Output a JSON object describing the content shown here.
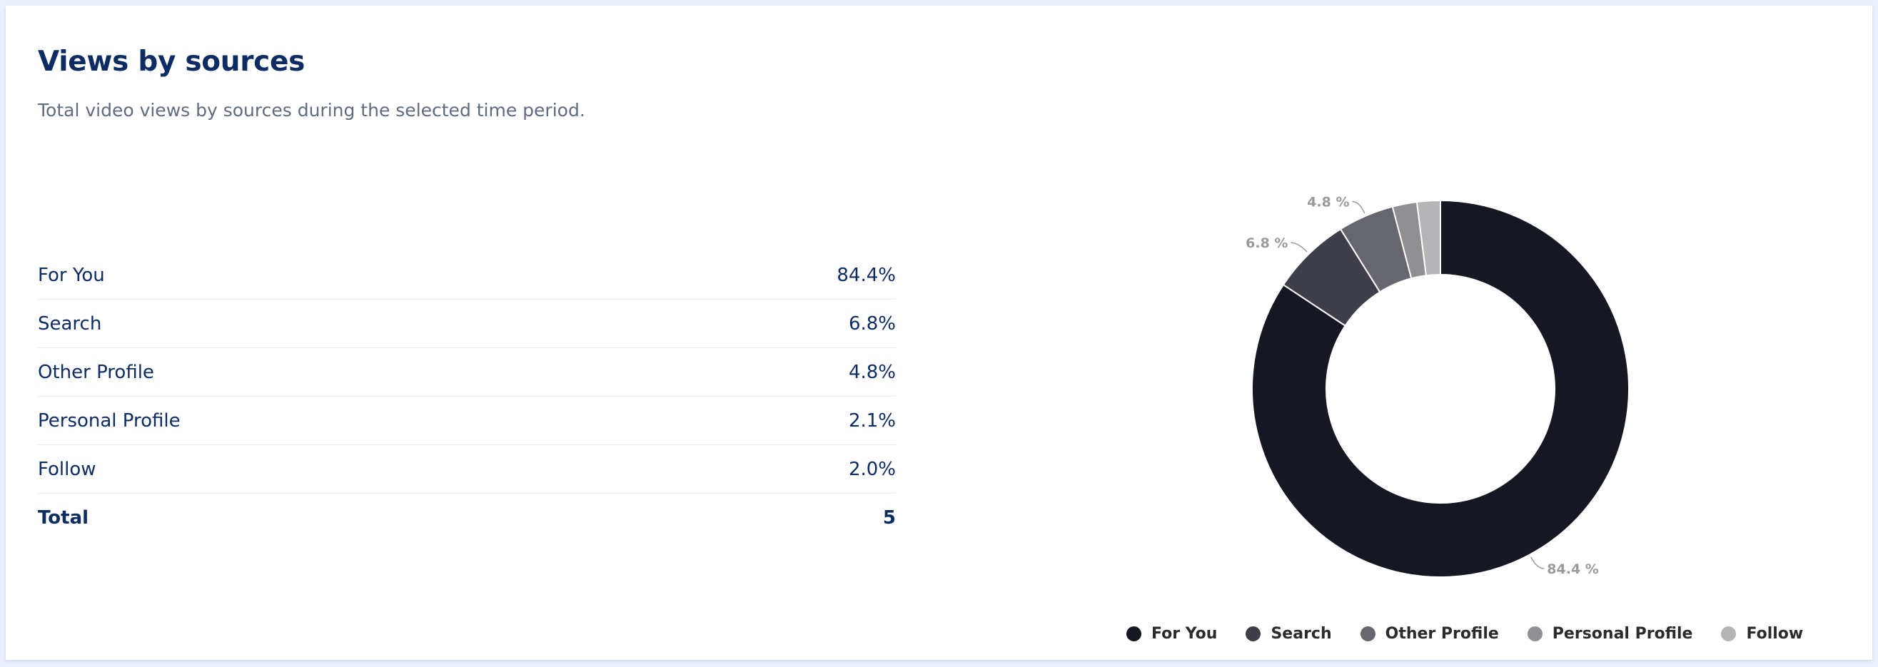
{
  "header": {
    "title": "Views by sources",
    "subtitle": "Total video views by sources during the selected time period."
  },
  "table": {
    "rows": [
      {
        "label": "For You",
        "value": "84.4%"
      },
      {
        "label": "Search",
        "value": "6.8%"
      },
      {
        "label": "Other Profile",
        "value": "4.8%"
      },
      {
        "label": "Personal Profile",
        "value": "2.1%"
      },
      {
        "label": "Follow",
        "value": "2.0%"
      }
    ],
    "total_label": "Total",
    "total_value": "5"
  },
  "chart_data": {
    "type": "pie",
    "donut": true,
    "categories": [
      "For You",
      "Search",
      "Other Profile",
      "Personal Profile",
      "Follow"
    ],
    "values": [
      84.4,
      6.8,
      4.8,
      2.1,
      2.0
    ],
    "data_labels": [
      "84.4 %",
      "6.8 %",
      "4.8 %",
      "",
      ""
    ],
    "colors": [
      "#151823",
      "#3f3f49",
      "#66666e",
      "#8f8f94",
      "#b5b5b8"
    ],
    "legend": "bottom"
  }
}
